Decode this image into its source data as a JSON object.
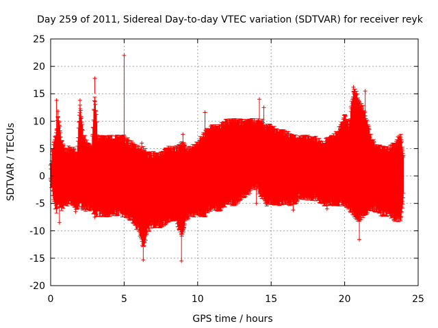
{
  "chart_data": {
    "type": "scatter",
    "title": "Day 259 of 2011, Sidereal Day-to-day VTEC variation (SDTVAR) for receiver reyk",
    "xlabel": "GPS time / hours",
    "ylabel": "SDTVAR / TECUs",
    "xlim": [
      0,
      25
    ],
    "ylim": [
      -20,
      25
    ],
    "xticks": [
      0,
      5,
      10,
      15,
      20,
      25
    ],
    "yticks": [
      -20,
      -15,
      -10,
      -5,
      0,
      5,
      10,
      15,
      20,
      25
    ],
    "grid": true,
    "series_color": "#ff0000",
    "series": [
      {
        "name": "SDTVAR",
        "envelope": [
          [
            0.0,
            -1,
            2
          ],
          [
            0.2,
            -4,
            6
          ],
          [
            0.4,
            -7,
            8
          ],
          [
            0.5,
            -5,
            11
          ],
          [
            0.7,
            -6,
            7
          ],
          [
            1.0,
            -5,
            5
          ],
          [
            1.5,
            -5,
            5
          ],
          [
            1.8,
            -6,
            4
          ],
          [
            2.0,
            -5,
            13
          ],
          [
            2.2,
            -6,
            8
          ],
          [
            2.5,
            -6,
            6
          ],
          [
            2.8,
            -6,
            5
          ],
          [
            3.0,
            -7,
            15
          ],
          [
            3.2,
            -7,
            7
          ],
          [
            3.5,
            -7,
            7
          ],
          [
            4.0,
            -7,
            7
          ],
          [
            4.5,
            -7,
            7
          ],
          [
            5.0,
            -7,
            7
          ],
          [
            5.5,
            -8,
            6
          ],
          [
            6.0,
            -10,
            5
          ],
          [
            6.3,
            -13,
            5
          ],
          [
            6.6,
            -10,
            4
          ],
          [
            7.0,
            -9,
            4
          ],
          [
            7.5,
            -9,
            4
          ],
          [
            8.0,
            -8,
            5
          ],
          [
            8.5,
            -8,
            5
          ],
          [
            9.0,
            -11,
            6
          ],
          [
            9.2,
            -8,
            5
          ],
          [
            9.5,
            -7,
            5
          ],
          [
            10.0,
            -7,
            6
          ],
          [
            10.5,
            -7,
            8
          ],
          [
            11.0,
            -6,
            9
          ],
          [
            11.5,
            -6,
            9
          ],
          [
            12.0,
            -5,
            10
          ],
          [
            12.5,
            -5,
            10
          ],
          [
            13.0,
            -4,
            10
          ],
          [
            13.5,
            -3,
            10
          ],
          [
            14.0,
            -2,
            10
          ],
          [
            14.4,
            -4,
            10
          ],
          [
            14.6,
            -5,
            9
          ],
          [
            15.0,
            -5,
            9
          ],
          [
            15.5,
            -5,
            8
          ],
          [
            16.0,
            -5,
            8
          ],
          [
            16.5,
            -5,
            7
          ],
          [
            17.0,
            -4,
            7
          ],
          [
            17.5,
            -4,
            7
          ],
          [
            18.0,
            -4,
            7
          ],
          [
            18.5,
            -5,
            6
          ],
          [
            19.0,
            -5,
            7
          ],
          [
            19.5,
            -5,
            8
          ],
          [
            20.0,
            -5,
            11
          ],
          [
            20.3,
            -6,
            9
          ],
          [
            20.6,
            -7,
            16
          ],
          [
            21.0,
            -8,
            14
          ],
          [
            21.3,
            -7,
            12
          ],
          [
            21.7,
            -6,
            8
          ],
          [
            22.0,
            -6,
            6
          ],
          [
            22.5,
            -7,
            5
          ],
          [
            23.0,
            -7,
            5
          ],
          [
            23.5,
            -8,
            6
          ],
          [
            23.8,
            -8,
            8
          ],
          [
            24.0,
            -4,
            4
          ]
        ],
        "outliers": [
          [
            0.4,
            13.8
          ],
          [
            0.5,
            11.8
          ],
          [
            0.4,
            8.4
          ],
          [
            2.0,
            13.8
          ],
          [
            3.0,
            17.8
          ],
          [
            5.0,
            22.0
          ],
          [
            6.3,
            -15.3
          ],
          [
            6.2,
            6.0
          ],
          [
            8.9,
            -15.5
          ],
          [
            9.0,
            7.6
          ],
          [
            8.8,
            4.6
          ],
          [
            10.5,
            11.6
          ],
          [
            14.2,
            14.0
          ],
          [
            14.5,
            12.5
          ],
          [
            14.0,
            -5.0
          ],
          [
            16.5,
            -6.2
          ],
          [
            21.0,
            -11.6
          ],
          [
            20.6,
            16.2
          ],
          [
            21.4,
            15.5
          ],
          [
            3.0,
            -7.5
          ],
          [
            0.6,
            -8.5
          ],
          [
            1.7,
            -6.5
          ],
          [
            7.8,
            -8.8
          ],
          [
            18.8,
            -6.0
          ],
          [
            22.8,
            -4.0
          ]
        ]
      }
    ]
  }
}
